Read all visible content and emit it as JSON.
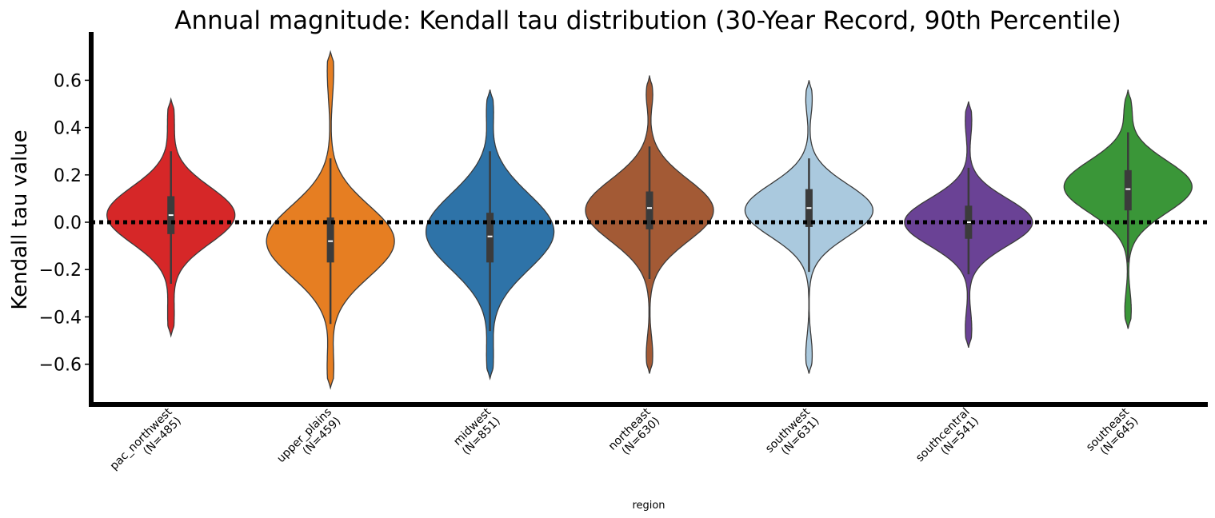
{
  "chart_data": {
    "type": "violin",
    "title": "Annual magnitude: Kendall tau distribution (30-Year Record, 90th Percentile)",
    "xlabel": "region",
    "ylabel": "Kendall tau value",
    "ylim": [
      -0.78,
      0.8
    ],
    "yticks": [
      -0.6,
      -0.4,
      -0.2,
      0.0,
      0.2,
      0.4,
      0.6
    ],
    "ytick_labels": [
      "−0.6",
      "−0.4",
      "−0.2",
      "0.0",
      "0.2",
      "0.4",
      "0.6"
    ],
    "reference_line": {
      "y": 0.0,
      "style": "dotted",
      "color": "#000000"
    },
    "grid": false,
    "categories": [
      {
        "region": "pac_northwest",
        "n_label": "(N=485)",
        "color": "#d62728",
        "median": 0.03,
        "q1": -0.05,
        "q3": 0.11,
        "whisker_low": -0.26,
        "whisker_high": 0.3,
        "min": -0.48,
        "max": 0.52,
        "center": 0.03,
        "spread": 0.12,
        "upper_tail": 0.1,
        "lower_tail": 0.1
      },
      {
        "region": "upper_plains",
        "n_label": "(N=459)",
        "color": "#e67e22",
        "median": -0.08,
        "q1": -0.17,
        "q3": 0.02,
        "whisker_low": -0.43,
        "whisker_high": 0.27,
        "min": -0.7,
        "max": 0.72,
        "center": -0.08,
        "spread": 0.15,
        "upper_tail": 0.12,
        "lower_tail": 0.1
      },
      {
        "region": "midwest",
        "n_label": "(N=851)",
        "color": "#2e73a8",
        "median": -0.06,
        "q1": -0.17,
        "q3": 0.04,
        "whisker_low": -0.46,
        "whisker_high": 0.3,
        "min": -0.66,
        "max": 0.56,
        "center": -0.04,
        "spread": 0.16,
        "upper_tail": 0.08,
        "lower_tail": 0.1
      },
      {
        "region": "northeast",
        "n_label": "(N=630)",
        "color": "#a35a35",
        "median": 0.06,
        "q1": -0.03,
        "q3": 0.13,
        "whisker_low": -0.24,
        "whisker_high": 0.32,
        "min": -0.64,
        "max": 0.62,
        "center": 0.05,
        "spread": 0.13,
        "upper_tail": 0.06,
        "lower_tail": 0.08
      },
      {
        "region": "southwest",
        "n_label": "(N=631)",
        "color": "#aac9de",
        "median": 0.06,
        "q1": -0.02,
        "q3": 0.14,
        "whisker_low": -0.21,
        "whisker_high": 0.27,
        "min": -0.64,
        "max": 0.6,
        "center": 0.05,
        "spread": 0.11,
        "upper_tail": 0.07,
        "lower_tail": 0.08
      },
      {
        "region": "southcentral",
        "n_label": "(N=541)",
        "color": "#6a4295",
        "median": 0.0,
        "q1": -0.07,
        "q3": 0.07,
        "whisker_low": -0.22,
        "whisker_high": 0.23,
        "min": -0.53,
        "max": 0.51,
        "center": 0.0,
        "spread": 0.1,
        "upper_tail": 0.08,
        "lower_tail": 0.08
      },
      {
        "region": "southeast",
        "n_label": "(N=645)",
        "color": "#3a9638",
        "median": 0.14,
        "q1": 0.05,
        "q3": 0.22,
        "whisker_low": -0.17,
        "whisker_high": 0.38,
        "min": -0.45,
        "max": 0.56,
        "center": 0.15,
        "spread": 0.11,
        "upper_tail": 0.06,
        "lower_tail": 0.08
      }
    ]
  }
}
